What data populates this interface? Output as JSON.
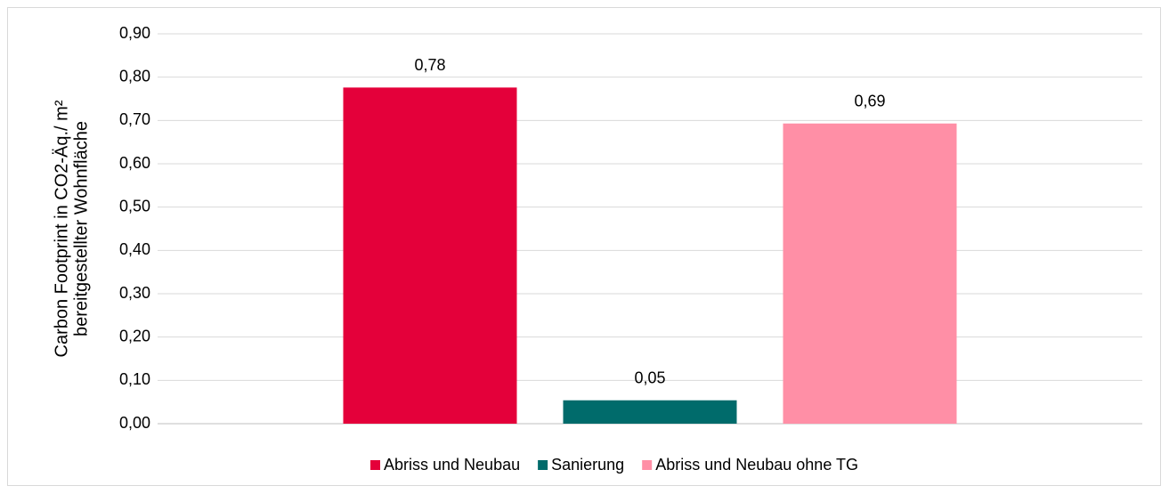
{
  "chart_data": {
    "type": "bar",
    "categories": [
      null
    ],
    "ylabel": [
      "Carbon Footprint in CO2-Äq./ m²",
      "bereitgestellter Wohnfläche"
    ],
    "series": [
      {
        "name": "Abriss und Neubau",
        "color": "#e4003a",
        "values": [
          0.776
        ],
        "value_labels": [
          "0,78"
        ]
      },
      {
        "name": "Sanierung",
        "color": "#006b6b",
        "values": [
          0.054
        ],
        "value_labels": [
          "0,05"
        ]
      },
      {
        "name": "Abriss und Neubau ohne TG",
        "color": "#ff8fa6",
        "values": [
          0.693
        ],
        "value_labels": [
          "0,69"
        ]
      }
    ],
    "ylim": [
      0,
      0.9
    ],
    "yticks": [
      {
        "value": 0,
        "label": "0,00"
      },
      {
        "value": 0.1,
        "label": "0,10"
      },
      {
        "value": 0.2,
        "label": "0,20"
      },
      {
        "value": 0.3,
        "label": "0,30"
      },
      {
        "value": 0.4,
        "label": "0,40"
      },
      {
        "value": 0.5,
        "label": "0,50"
      },
      {
        "value": 0.6,
        "label": "0,60"
      },
      {
        "value": 0.7,
        "label": "0,70"
      },
      {
        "value": 0.8,
        "label": "0,80"
      },
      {
        "value": 0.9,
        "label": "0,90"
      }
    ],
    "grid": true,
    "legend": "bottom"
  }
}
